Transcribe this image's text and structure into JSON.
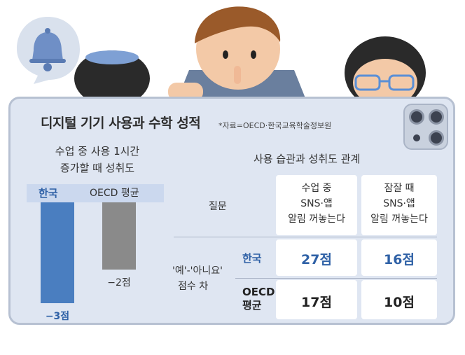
{
  "title": "디지털 기기 사용과 수학 성적",
  "source": "*자료=OECD·한국교육학술정보원",
  "left_chart": {
    "subtitle_line1": "수업 중 사용 1시간",
    "subtitle_line2": "증가할 때 성취도",
    "legend_korea": "한국",
    "legend_oecd": "OECD 평균"
  },
  "right_table": {
    "subtitle": "사용 습관과 성취도 관계",
    "question_label": "질문",
    "col1_line1": "수업 중",
    "col1_line2": "SNS·앱",
    "col1_line3": "알림 꺼놓는다",
    "col2_line1": "잠잘 때",
    "col2_line2": "SNS·앱",
    "col2_line3": "알림 꺼놓는다",
    "diff_label_line1": "'예'-'아니요'",
    "diff_label_line2": "점수 차",
    "row_korea": "한국",
    "row_oecd_line1": "OECD",
    "row_oecd_line2": "평균",
    "korea_col1": "27점",
    "korea_col2": "16점",
    "oecd_col1": "17점",
    "oecd_col2": "10점"
  },
  "chart_data": {
    "type": "bar",
    "title": "수업 중 사용 1시간 증가할 때 성취도",
    "categories": [
      "한국",
      "OECD 평균"
    ],
    "values": [
      -3,
      -2
    ],
    "value_labels": [
      "−3점",
      "−2점"
    ],
    "colors": [
      "#4a7ec0",
      "#8a8a8a"
    ]
  },
  "colors": {
    "accent_blue": "#2f61a6",
    "tablet_bg": "#dfe6f2"
  },
  "illustration": {
    "bell_icon": "bell-icon",
    "people": "three-children-peeking"
  }
}
